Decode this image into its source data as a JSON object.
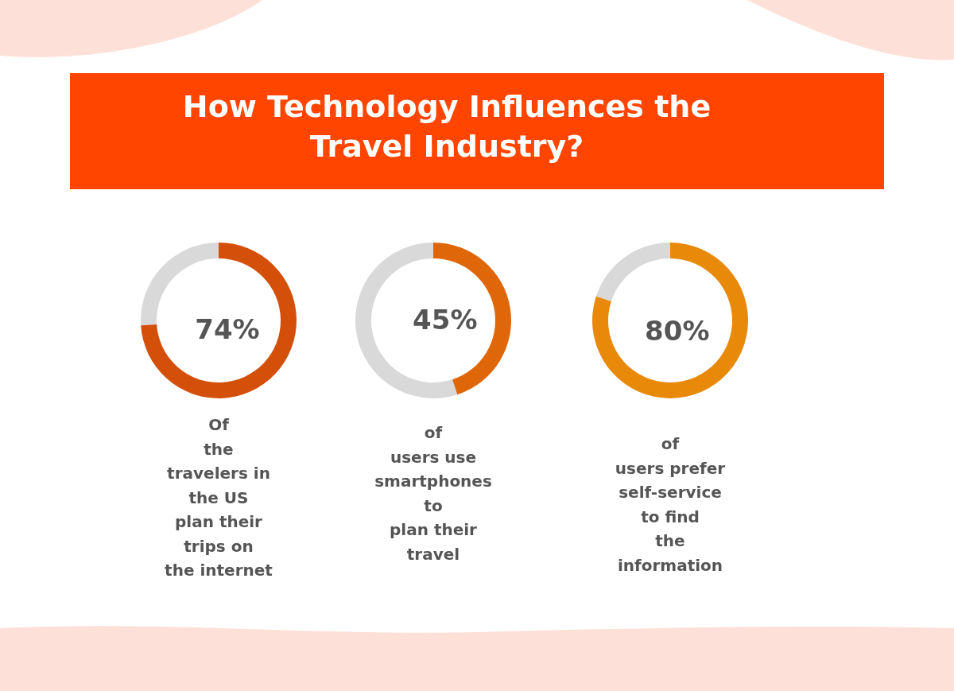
{
  "chart_data": [
    {
      "type": "donut",
      "title": "How Technology Influences the Travel Industry?",
      "categories": [
        null,
        null
      ],
      "values": [
        74,
        26
      ],
      "colors": [
        "#d4500a",
        "#d9d9d9"
      ],
      "value_labels": [
        "74%",
        null
      ],
      "annotations": [
        "Of\nthe\ntravelers in\nthe US\nplan their\ntrips on\nthe internet"
      ]
    },
    {
      "type": "donut",
      "categories": [
        null,
        null
      ],
      "values": [
        45,
        55
      ],
      "colors": [
        "#e0660a",
        "#d9d9d9"
      ],
      "value_labels": [
        "45%",
        null
      ],
      "annotations": [
        "of\nusers use\nsmartphones\nto\nplan their\ntravel"
      ]
    },
    {
      "type": "donut",
      "categories": [
        null,
        null
      ],
      "values": [
        80,
        20
      ],
      "colors": [
        "#e8890a",
        "#d9d9d9"
      ],
      "value_labels": [
        "80%",
        null
      ],
      "annotations": [
        "of\nusers prefer\nself-service\nto find\nthe\ninformation"
      ]
    }
  ]
}
